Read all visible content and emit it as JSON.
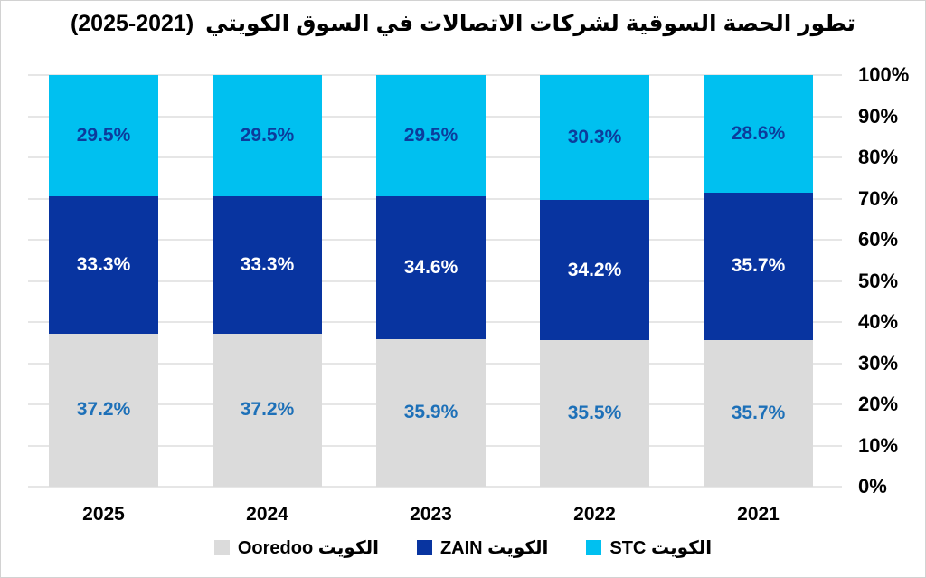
{
  "title": {
    "text_ar": "تطور الحصة السوقية لشركات الاتصالات في السوق الكويتي",
    "years_display": "(2025-2021)"
  },
  "y_axis": {
    "tick_labels": [
      "0%",
      "10%",
      "20%",
      "30%",
      "40%",
      "50%",
      "60%",
      "70%",
      "80%",
      "90%",
      "100%"
    ]
  },
  "legend": [
    {
      "id": "ooredoo",
      "label": "Ooredoo الكويت",
      "color": "#dbdbdb"
    },
    {
      "id": "zain",
      "label": "ZAIN الكويت",
      "color": "#0834a0"
    },
    {
      "id": "stc",
      "label": "STC الكويت",
      "color": "#00c0f0"
    }
  ],
  "chart_data": {
    "type": "bar",
    "stacked": true,
    "title": "تطور الحصة السوقية لشركات الاتصالات في السوق الكويتي (2021-2025)",
    "categories": [
      "2025",
      "2024",
      "2023",
      "2022",
      "2021"
    ],
    "series": [
      {
        "name": "Ooredoo الكويت",
        "color": "#dbdbdb",
        "label_color": "#1d70b8",
        "values": [
          37.2,
          37.2,
          35.9,
          35.5,
          35.7
        ]
      },
      {
        "name": "ZAIN الكويت",
        "color": "#0834a0",
        "label_color": "#ffffff",
        "values": [
          33.3,
          33.3,
          34.6,
          34.2,
          35.7
        ]
      },
      {
        "name": "STC الكويت",
        "color": "#00c0f0",
        "label_color": "#0c3c9c",
        "values": [
          29.5,
          29.5,
          29.5,
          30.3,
          28.6
        ]
      }
    ],
    "ylim": [
      0,
      100
    ],
    "y_ticks_pct": [
      0,
      10,
      20,
      30,
      40,
      50,
      60,
      70,
      80,
      90,
      100
    ],
    "value_suffix": "%",
    "grid": true,
    "y_axis_side": "right",
    "legend_position": "bottom"
  }
}
